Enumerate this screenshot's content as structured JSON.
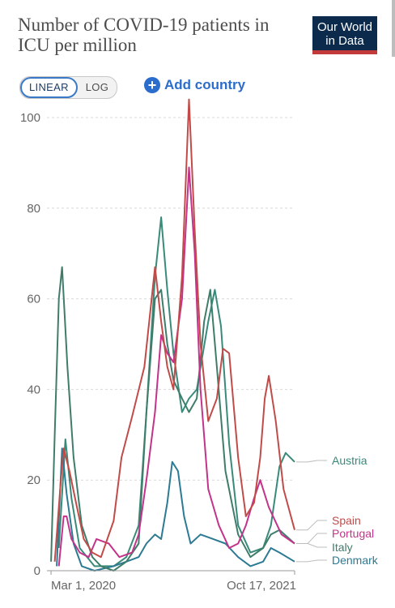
{
  "header": {
    "title": "Number of COVID-19 patients in ICU per million",
    "logo_line1": "Our World",
    "logo_line2": "in Data"
  },
  "controls": {
    "linear_label": "LINEAR",
    "log_label": "LOG",
    "add_country_label": "Add country",
    "plus_symbol": "+"
  },
  "chart_data": {
    "type": "line",
    "title": "Number of COVID-19 patients in ICU per million",
    "xlabel": "",
    "ylabel": "",
    "ylim": [
      0,
      100
    ],
    "yticks": [
      0,
      20,
      40,
      60,
      80,
      100
    ],
    "x_range": [
      "2020-02-20",
      "2021-10-17"
    ],
    "x_tick_labels": [
      {
        "date": "2020-03-01",
        "label": "Mar 1, 2020"
      },
      {
        "date": "2021-10-17",
        "label": "Oct 17, 2021"
      }
    ],
    "grid": true,
    "legend": "right end labels",
    "series": [
      {
        "name": "Austria",
        "color": "#3a8a7a",
        "points": [
          [
            "2020-03-20",
            5
          ],
          [
            "2020-04-05",
            29
          ],
          [
            "2020-04-20",
            16
          ],
          [
            "2020-05-10",
            5
          ],
          [
            "2020-06-15",
            1
          ],
          [
            "2020-08-01",
            1
          ],
          [
            "2020-09-01",
            3
          ],
          [
            "2020-10-01",
            10
          ],
          [
            "2020-10-20",
            35
          ],
          [
            "2020-11-10",
            65
          ],
          [
            "2020-11-25",
            78
          ],
          [
            "2020-12-10",
            62
          ],
          [
            "2020-12-25",
            48
          ],
          [
            "2021-01-15",
            35
          ],
          [
            "2021-02-01",
            38
          ],
          [
            "2021-02-20",
            40
          ],
          [
            "2021-03-20",
            55
          ],
          [
            "2021-04-05",
            62
          ],
          [
            "2021-04-20",
            54
          ],
          [
            "2021-05-10",
            28
          ],
          [
            "2021-06-01",
            10
          ],
          [
            "2021-07-01",
            4
          ],
          [
            "2021-08-01",
            5
          ],
          [
            "2021-08-20",
            10
          ],
          [
            "2021-09-10",
            23
          ],
          [
            "2021-09-25",
            26
          ],
          [
            "2021-10-17",
            24
          ]
        ]
      },
      {
        "name": "Spain",
        "color": "#c14b49",
        "points": [
          [
            "2020-03-10",
            2
          ],
          [
            "2020-03-25",
            20
          ],
          [
            "2020-04-01",
            27
          ],
          [
            "2020-04-15",
            22
          ],
          [
            "2020-05-01",
            15
          ],
          [
            "2020-05-20",
            7
          ],
          [
            "2020-06-10",
            4
          ],
          [
            "2020-07-01",
            3
          ],
          [
            "2020-08-01",
            11
          ],
          [
            "2020-08-20",
            25
          ],
          [
            "2020-09-15",
            34
          ],
          [
            "2020-10-15",
            45
          ],
          [
            "2020-11-10",
            67
          ],
          [
            "2020-11-25",
            55
          ],
          [
            "2020-12-10",
            45
          ],
          [
            "2020-12-25",
            40
          ],
          [
            "2021-01-15",
            65
          ],
          [
            "2021-02-01",
            104
          ],
          [
            "2021-02-15",
            75
          ],
          [
            "2021-03-01",
            50
          ],
          [
            "2021-03-20",
            33
          ],
          [
            "2021-04-10",
            38
          ],
          [
            "2021-04-25",
            49
          ],
          [
            "2021-05-10",
            48
          ],
          [
            "2021-06-01",
            25
          ],
          [
            "2021-06-20",
            12
          ],
          [
            "2021-07-10",
            15
          ],
          [
            "2021-07-25",
            25
          ],
          [
            "2021-08-05",
            38
          ],
          [
            "2021-08-15",
            43
          ],
          [
            "2021-09-01",
            33
          ],
          [
            "2021-09-20",
            18
          ],
          [
            "2021-10-17",
            9
          ]
        ]
      },
      {
        "name": "Portugal",
        "color": "#c2338a",
        "points": [
          [
            "2020-03-20",
            1
          ],
          [
            "2020-04-01",
            12
          ],
          [
            "2020-04-08",
            12
          ],
          [
            "2020-04-20",
            7
          ],
          [
            "2020-05-10",
            4
          ],
          [
            "2020-06-01",
            3
          ],
          [
            "2020-06-20",
            7
          ],
          [
            "2020-07-20",
            6
          ],
          [
            "2020-08-15",
            3
          ],
          [
            "2020-09-15",
            4
          ],
          [
            "2020-10-01",
            8
          ],
          [
            "2020-10-20",
            20
          ],
          [
            "2020-11-10",
            35
          ],
          [
            "2020-11-25",
            52
          ],
          [
            "2020-12-10",
            48
          ],
          [
            "2020-12-25",
            46
          ],
          [
            "2021-01-15",
            60
          ],
          [
            "2021-02-01",
            89
          ],
          [
            "2021-02-15",
            70
          ],
          [
            "2021-03-01",
            40
          ],
          [
            "2021-03-20",
            18
          ],
          [
            "2021-04-15",
            10
          ],
          [
            "2021-05-10",
            5
          ],
          [
            "2021-06-01",
            6
          ],
          [
            "2021-06-20",
            10
          ],
          [
            "2021-07-10",
            16
          ],
          [
            "2021-07-25",
            20
          ],
          [
            "2021-08-15",
            14
          ],
          [
            "2021-09-15",
            8
          ],
          [
            "2021-10-17",
            6
          ]
        ]
      },
      {
        "name": "Italy",
        "color": "#3f7d6a",
        "points": [
          [
            "2020-03-01",
            2
          ],
          [
            "2020-03-10",
            30
          ],
          [
            "2020-03-20",
            60
          ],
          [
            "2020-03-28",
            67
          ],
          [
            "2020-04-10",
            45
          ],
          [
            "2020-04-25",
            25
          ],
          [
            "2020-05-15",
            10
          ],
          [
            "2020-06-10",
            3
          ],
          [
            "2020-07-01",
            1
          ],
          [
            "2020-08-01",
            0
          ],
          [
            "2020-09-01",
            2
          ],
          [
            "2020-10-01",
            6
          ],
          [
            "2020-10-20",
            35
          ],
          [
            "2020-11-10",
            60
          ],
          [
            "2020-11-25",
            62
          ],
          [
            "2020-12-10",
            50
          ],
          [
            "2020-12-25",
            42
          ],
          [
            "2021-01-15",
            38
          ],
          [
            "2021-02-01",
            35
          ],
          [
            "2021-02-20",
            38
          ],
          [
            "2021-03-10",
            55
          ],
          [
            "2021-03-25",
            62
          ],
          [
            "2021-04-10",
            45
          ],
          [
            "2021-05-01",
            22
          ],
          [
            "2021-06-01",
            8
          ],
          [
            "2021-07-01",
            3
          ],
          [
            "2021-08-01",
            5
          ],
          [
            "2021-08-20",
            8
          ],
          [
            "2021-09-10",
            9
          ],
          [
            "2021-10-17",
            6
          ]
        ]
      },
      {
        "name": "Denmark",
        "color": "#2c7a93",
        "points": [
          [
            "2020-03-15",
            1
          ],
          [
            "2020-03-28",
            27
          ],
          [
            "2020-04-08",
            17
          ],
          [
            "2020-04-25",
            6
          ],
          [
            "2020-05-15",
            1
          ],
          [
            "2020-06-15",
            0
          ],
          [
            "2020-08-01",
            1
          ],
          [
            "2020-09-01",
            2
          ],
          [
            "2020-10-01",
            3
          ],
          [
            "2020-10-20",
            6
          ],
          [
            "2020-11-10",
            8
          ],
          [
            "2020-11-25",
            7
          ],
          [
            "2020-12-10",
            15
          ],
          [
            "2020-12-22",
            24
          ],
          [
            "2021-01-05",
            22
          ],
          [
            "2021-01-20",
            12
          ],
          [
            "2021-02-05",
            6
          ],
          [
            "2021-03-01",
            8
          ],
          [
            "2021-04-01",
            7
          ],
          [
            "2021-05-01",
            6
          ],
          [
            "2021-06-01",
            3
          ],
          [
            "2021-07-01",
            1
          ],
          [
            "2021-08-01",
            2
          ],
          [
            "2021-08-20",
            5
          ],
          [
            "2021-09-10",
            4
          ],
          [
            "2021-10-17",
            2
          ]
        ]
      }
    ],
    "end_labels": [
      "Austria",
      "Spain",
      "Portugal",
      "Italy",
      "Denmark"
    ]
  }
}
